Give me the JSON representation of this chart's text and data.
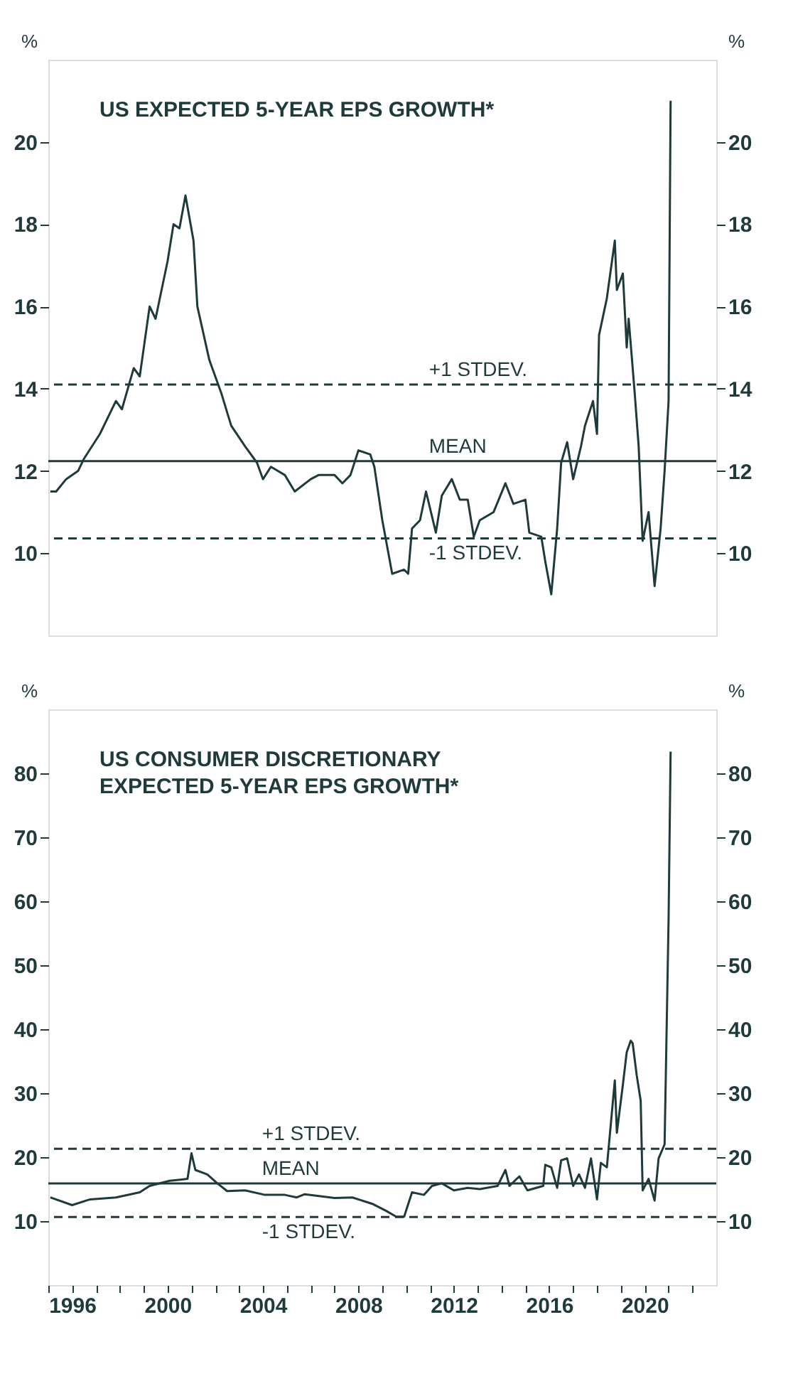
{
  "chart_data": [
    {
      "type": "line",
      "title": "US EXPECTED 5-YEAR EPS GROWTH*",
      "ylabel": "%",
      "y2label": "%",
      "tick_labels": "y",
      "line_style": "solid",
      "marker": "none",
      "xlim": [
        "1995-01-01",
        "2023-01-01"
      ],
      "ylim": [
        8,
        22
      ],
      "yticks": [
        10,
        12,
        14,
        16,
        18,
        20
      ],
      "y2lim": [
        8,
        22
      ],
      "y2ticks": [
        10,
        12,
        14,
        16,
        18,
        20
      ],
      "x": [
        "1995-02",
        "1995-05",
        "1995-10",
        "1996-04",
        "1996-07",
        "1997-03",
        "1997-11",
        "1998-02",
        "1998-08",
        "1998-11",
        "1999-04",
        "1999-07",
        "2000-01",
        "2000-04",
        "2000-07",
        "2000-10",
        "2001-02",
        "2001-04",
        "2001-10",
        "2002-04",
        "2002-09",
        "2003-04",
        "2003-10",
        "2004-01",
        "2004-05",
        "2004-12",
        "2005-05",
        "2006-01",
        "2006-05",
        "2007-01",
        "2007-05",
        "2007-09",
        "2008-01",
        "2008-07",
        "2008-09",
        "2009-01",
        "2009-06",
        "2009-12",
        "2010-02",
        "2010-04",
        "2010-08",
        "2010-11",
        "2011-04",
        "2011-07",
        "2011-12",
        "2012-04",
        "2012-08",
        "2012-11",
        "2013-02",
        "2013-09",
        "2014-03",
        "2014-07",
        "2015-01",
        "2015-03",
        "2015-09",
        "2015-11",
        "2016-02",
        "2016-05",
        "2016-07",
        "2016-10",
        "2017-01",
        "2017-05",
        "2017-07",
        "2017-11",
        "2018-01",
        "2018-02",
        "2018-06",
        "2018-10",
        "2018-11",
        "2019-02",
        "2019-04",
        "2019-05",
        "2019-08",
        "2019-10",
        "2019-12",
        "2020-03",
        "2020-06",
        "2020-09",
        "2020-11",
        "2021-01",
        "2021-02"
      ],
      "series": [
        {
          "color": "#1f3a3a",
          "values": [
            11.5,
            11.5,
            11.8,
            12.0,
            12.3,
            12.9,
            13.7,
            13.5,
            14.5,
            14.3,
            16.0,
            15.7,
            17.1,
            18.0,
            17.9,
            18.7,
            17.6,
            16.0,
            14.7,
            13.9,
            13.1,
            12.6,
            12.2,
            11.8,
            12.1,
            11.9,
            11.5,
            11.8,
            11.9,
            11.9,
            11.7,
            11.9,
            12.5,
            12.4,
            12.1,
            10.8,
            9.5,
            9.6,
            9.5,
            10.6,
            10.8,
            11.5,
            10.5,
            11.4,
            11.8,
            11.3,
            11.3,
            10.4,
            10.8,
            11.0,
            11.7,
            11.2,
            11.3,
            10.5,
            10.4,
            9.8,
            9.0,
            10.6,
            12.2,
            12.7,
            11.8,
            12.6,
            13.1,
            13.7,
            12.9,
            15.3,
            16.2,
            17.6,
            16.4,
            16.8,
            15.0,
            15.7,
            13.9,
            12.6,
            10.3,
            11.0,
            9.2,
            10.6,
            12.0,
            13.7,
            21.0
          ]
        }
      ],
      "ref_lines": [
        {
          "axis": "y",
          "value": 14.1,
          "label": "+1 STDEV.",
          "line_style": "dashed",
          "color": "#1f3a3a"
        },
        {
          "axis": "y",
          "value": 12.24,
          "label": "MEAN",
          "line_style": "solid",
          "color": "#1f3a3a"
        },
        {
          "axis": "y",
          "value": 10.36,
          "label": "-1 STDEV.",
          "line_style": "dashed",
          "color": "#1f3a3a"
        }
      ]
    },
    {
      "type": "line",
      "title": "US CONSUMER DISCRETIONARY\nEXPECTED 5-YEAR EPS GROWTH*",
      "ylabel": "%",
      "y2label": "%",
      "line_style": "solid",
      "marker": "none",
      "xlim": [
        "1995-01-01",
        "2023-01-01"
      ],
      "ylim": [
        0,
        90
      ],
      "yticks": [
        10,
        20,
        30,
        40,
        50,
        60,
        70,
        80
      ],
      "y2lim": [
        0,
        90
      ],
      "y2ticks": [
        10,
        20,
        30,
        40,
        50,
        60,
        70,
        80
      ],
      "xticks": [
        {
          "value": "1995",
          "label": null
        },
        {
          "value": "1996",
          "label": "1996"
        },
        {
          "value": "1997",
          "label": null
        },
        {
          "value": "1998",
          "label": null
        },
        {
          "value": "1999",
          "label": null
        },
        {
          "value": "2000",
          "label": "2000"
        },
        {
          "value": "2001",
          "label": null
        },
        {
          "value": "2002",
          "label": null
        },
        {
          "value": "2003",
          "label": null
        },
        {
          "value": "2004",
          "label": "2004"
        },
        {
          "value": "2005",
          "label": null
        },
        {
          "value": "2006",
          "label": null
        },
        {
          "value": "2007",
          "label": null
        },
        {
          "value": "2008",
          "label": "2008"
        },
        {
          "value": "2009",
          "label": null
        },
        {
          "value": "2010",
          "label": null
        },
        {
          "value": "2011",
          "label": null
        },
        {
          "value": "2012",
          "label": "2012"
        },
        {
          "value": "2013",
          "label": null
        },
        {
          "value": "2014",
          "label": null
        },
        {
          "value": "2015",
          "label": null
        },
        {
          "value": "2016",
          "label": "2016"
        },
        {
          "value": "2017",
          "label": null
        },
        {
          "value": "2018",
          "label": null
        },
        {
          "value": "2019",
          "label": null
        },
        {
          "value": "2020",
          "label": "2020"
        },
        {
          "value": "2021",
          "label": null
        },
        {
          "value": "2022",
          "label": null
        }
      ],
      "x": [
        "1995-02",
        "1996-01",
        "1996-10",
        "1997-11",
        "1998-11",
        "1999-04",
        "2000-02",
        "2000-11",
        "2001-01",
        "2001-03",
        "2001-09",
        "2002-02",
        "2002-07",
        "2003-04",
        "2004-02",
        "2004-12",
        "2005-06",
        "2005-10",
        "2007-01",
        "2007-10",
        "2008-08",
        "2009-03",
        "2009-08",
        "2009-12",
        "2010-04",
        "2010-10",
        "2011-02",
        "2011-07",
        "2012-01",
        "2012-08",
        "2013-02",
        "2013-11",
        "2014-03",
        "2014-05",
        "2014-10",
        "2015-02",
        "2015-10",
        "2015-11",
        "2016-02",
        "2016-05",
        "2016-07",
        "2016-10",
        "2017-01",
        "2017-04",
        "2017-07",
        "2017-10",
        "2018-01",
        "2018-03",
        "2018-06",
        "2018-08",
        "2018-10",
        "2018-11",
        "2019-02",
        "2019-04",
        "2019-06",
        "2019-07",
        "2019-09",
        "2019-11",
        "2019-12",
        "2020-03",
        "2020-06",
        "2020-08",
        "2020-11",
        "2021-01",
        "2021-02"
      ],
      "series": [
        {
          "color": "#1f3a3a",
          "values": [
            13.7,
            12.5,
            13.4,
            13.7,
            14.5,
            15.5,
            16.3,
            16.6,
            20.6,
            18.0,
            17.3,
            15.9,
            14.7,
            14.8,
            14.1,
            14.1,
            13.7,
            14.2,
            13.6,
            13.7,
            12.7,
            11.6,
            10.7,
            10.7,
            14.5,
            14.1,
            15.5,
            15.9,
            14.8,
            15.2,
            15.0,
            15.5,
            18.0,
            15.5,
            17.0,
            14.8,
            15.5,
            18.8,
            18.4,
            15.2,
            19.5,
            19.8,
            15.5,
            17.3,
            15.2,
            19.8,
            13.4,
            19.1,
            18.4,
            25.2,
            32.0,
            23.8,
            31.3,
            36.4,
            38.2,
            37.8,
            32.8,
            28.8,
            14.8,
            16.6,
            13.2,
            19.8,
            22.0,
            57.2,
            83.4
          ]
        }
      ],
      "ref_lines": [
        {
          "axis": "y",
          "value": 21.3,
          "label": "+1 STDEV.",
          "line_style": "dashed",
          "color": "#1f3a3a"
        },
        {
          "axis": "y",
          "value": 15.9,
          "label": "MEAN",
          "line_style": "solid",
          "color": "#1f3a3a"
        },
        {
          "axis": "y",
          "value": 10.65,
          "label": "-1 STDEV.",
          "line_style": "dashed",
          "color": "#1f3a3a"
        }
      ]
    }
  ]
}
